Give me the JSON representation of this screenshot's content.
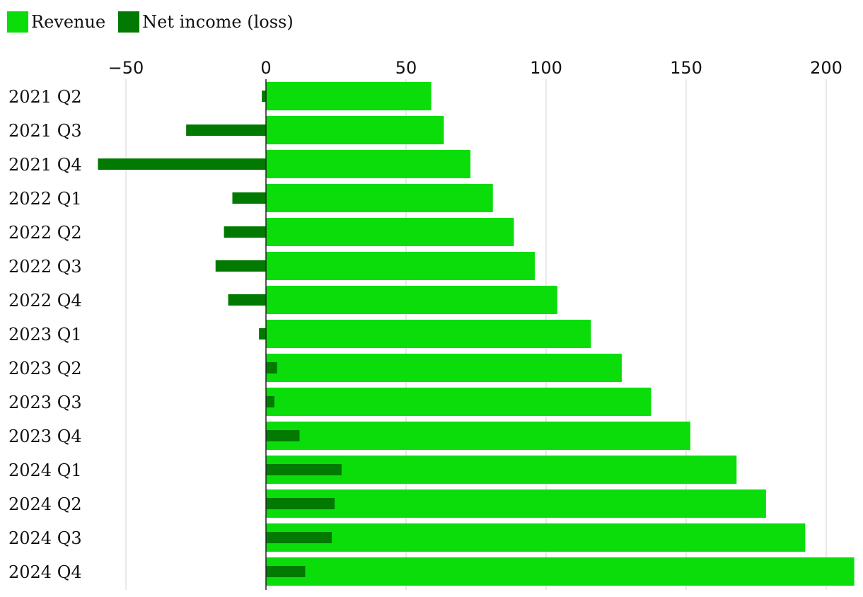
{
  "chart_data": {
    "type": "bar",
    "orientation": "horizontal",
    "categories": [
      "2021 Q2",
      "2021 Q3",
      "2021 Q4",
      "2022 Q1",
      "2022 Q2",
      "2022 Q3",
      "2022 Q4",
      "2023 Q1",
      "2023 Q2",
      "2023 Q3",
      "2023 Q4",
      "2024 Q1",
      "2024 Q2",
      "2024 Q3",
      "2024 Q4"
    ],
    "series": [
      {
        "name": "Revenue",
        "color": "#0add0a",
        "values": [
          59,
          63.5,
          73,
          81,
          88.5,
          96,
          104,
          116,
          127,
          137.5,
          151.5,
          168,
          178.5,
          192.5,
          210
        ]
      },
      {
        "name": "Net income (loss)",
        "color": "#027a02",
        "values": [
          -1.5,
          -28.5,
          -60,
          -12,
          -15,
          -18,
          -13.5,
          -2.5,
          4,
          3,
          12,
          27,
          24.5,
          23.5,
          14
        ]
      }
    ],
    "xlim": [
      -58,
      210
    ],
    "xticks": [
      -50,
      0,
      50,
      100,
      150,
      200
    ],
    "xtick_labels": [
      "−50",
      "0",
      "50",
      "100",
      "150",
      "200"
    ],
    "grid": true,
    "legend_position": "top-left",
    "title": "",
    "xlabel": "",
    "ylabel": ""
  }
}
